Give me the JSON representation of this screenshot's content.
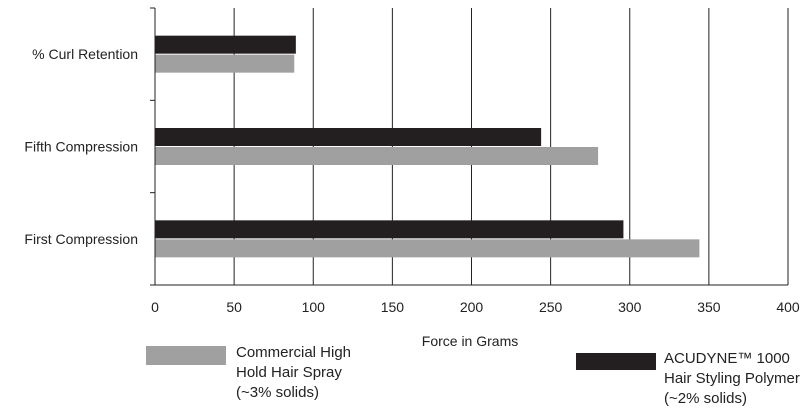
{
  "chart_data": {
    "type": "bar",
    "orientation": "horizontal",
    "categories": [
      "% Curl Retention",
      "Fifth Compression",
      "First Compression"
    ],
    "series": [
      {
        "name": "ACUDYNE™ 1000 Hair Styling Polymer (~2% solids)",
        "name_lines": [
          "ACUDYNE™ 1000",
          "Hair Styling Polymer",
          "(~2% solids)"
        ],
        "color": "#231f20",
        "values": [
          89,
          244,
          296
        ]
      },
      {
        "name": "Commercial High Hold Hair Spray (~3% solids)",
        "name_lines": [
          "Commercial High",
          "Hold Hair Spray",
          "(~3% solids)"
        ],
        "color": "#a0a0a0",
        "values": [
          88,
          280,
          344
        ]
      }
    ],
    "xlabel": "Force in Grams",
    "xlim": [
      0,
      400
    ],
    "xticks": [
      0,
      50,
      100,
      150,
      200,
      250,
      300,
      350,
      400
    ],
    "grid": "vertical",
    "legend": "bottom"
  }
}
